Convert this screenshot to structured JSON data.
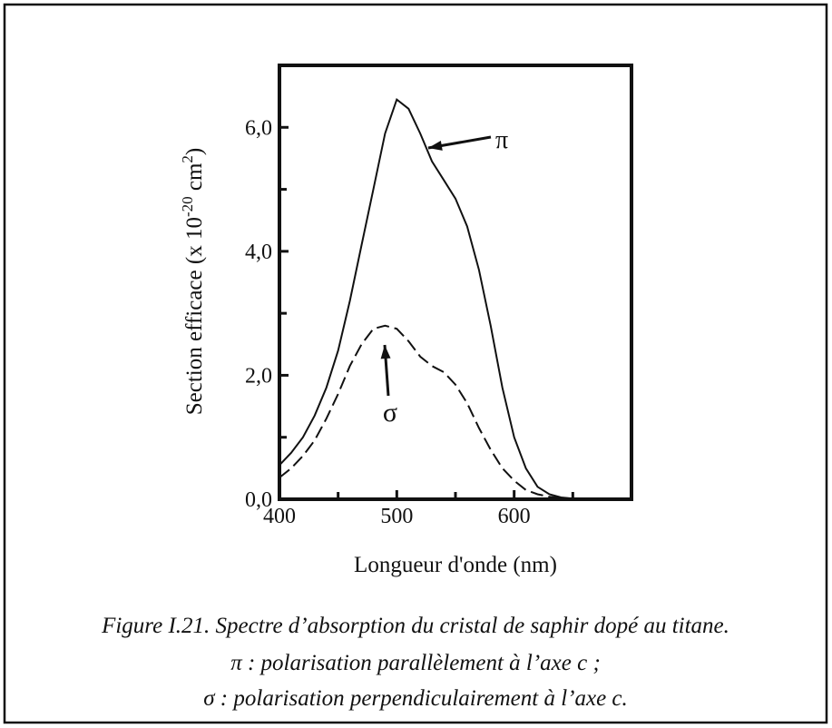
{
  "chart_data": {
    "type": "line",
    "xlabel": "Longueur d'onde (nm)",
    "ylabel": [
      "Section efficace (x 10",
      "-20",
      " cm",
      "2",
      ")"
    ],
    "caption": [
      "Figure I.21. Spectre d’absorption du cristal de saphir dopé au titane.",
      "π : polarisation parallèlement à l’axe c ;",
      "σ : polarisation perpendiculairement à l’axe c."
    ],
    "xlim": [
      400,
      700
    ],
    "ylim": [
      0,
      7
    ],
    "xticks": [
      400,
      500,
      600
    ],
    "xminorticks": [
      450,
      550,
      650
    ],
    "yticks": [
      {
        "value": 0,
        "label": "0,0"
      },
      {
        "value": 2,
        "label": "2,0"
      },
      {
        "value": 4,
        "label": "4,0"
      },
      {
        "value": 6,
        "label": "6,0"
      }
    ],
    "yminorticks": [
      1,
      3,
      5
    ],
    "x": [
      400,
      410,
      420,
      430,
      440,
      450,
      460,
      470,
      480,
      490,
      500,
      510,
      520,
      530,
      540,
      550,
      560,
      570,
      580,
      590,
      600,
      610,
      620,
      630,
      640,
      650,
      660,
      670,
      680,
      690,
      700
    ],
    "series": [
      {
        "name": "π",
        "color": "#111111",
        "dash": "solid",
        "values": [
          0.55,
          0.75,
          1.0,
          1.35,
          1.8,
          2.4,
          3.2,
          4.1,
          5.0,
          5.9,
          6.45,
          6.3,
          5.9,
          5.45,
          5.15,
          4.85,
          4.4,
          3.7,
          2.8,
          1.8,
          1.0,
          0.5,
          0.2,
          0.08,
          0.03,
          0.01,
          0,
          0,
          0,
          0,
          0
        ]
      },
      {
        "name": "σ",
        "color": "#111111",
        "dash": "dashed",
        "values": [
          0.35,
          0.5,
          0.7,
          0.95,
          1.3,
          1.7,
          2.15,
          2.5,
          2.75,
          2.8,
          2.75,
          2.55,
          2.3,
          2.15,
          2.05,
          1.85,
          1.55,
          1.15,
          0.8,
          0.5,
          0.3,
          0.15,
          0.08,
          0.04,
          0.02,
          0.01,
          0,
          0,
          0,
          0,
          0
        ]
      }
    ]
  }
}
